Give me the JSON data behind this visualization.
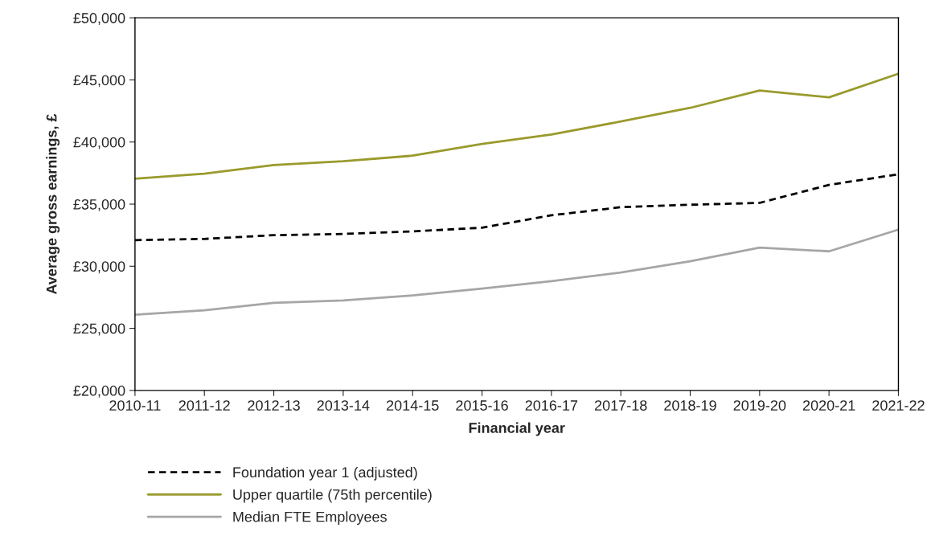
{
  "chart_data": {
    "type": "line",
    "xlabel": "Financial year",
    "ylabel": "Average gross earnings, £",
    "categories": [
      "2010-11",
      "2011-12",
      "2012-13",
      "2013-14",
      "2014-15",
      "2015-16",
      "2016-17",
      "2017-18",
      "2018-19",
      "2019-20",
      "2020-21",
      "2021-22"
    ],
    "series": [
      {
        "name": "Foundation year 1 (adjusted)",
        "color": "#000000",
        "line_style": "dashed",
        "values": [
          32100,
          32200,
          32500,
          32600,
          32800,
          33100,
          34100,
          34750,
          34950,
          35100,
          36550,
          37400
        ]
      },
      {
        "name": "Upper quartile (75th percentile)",
        "color": "#9a9a2c",
        "line_style": "solid",
        "values": [
          37050,
          37450,
          38150,
          38450,
          38900,
          39850,
          40600,
          41650,
          42750,
          44150,
          43600,
          45500
        ]
      },
      {
        "name": "Median FTE Employees",
        "color": "#a6a6a6",
        "line_style": "solid",
        "values": [
          26100,
          26450,
          27050,
          27250,
          27650,
          28200,
          28800,
          29500,
          30400,
          31500,
          31200,
          32950
        ]
      }
    ],
    "ylim": [
      20000,
      50000
    ],
    "yticks": [
      {
        "value": 20000,
        "label": "£20,000"
      },
      {
        "value": 25000,
        "label": "£25,000"
      },
      {
        "value": 30000,
        "label": "£30,000"
      },
      {
        "value": 35000,
        "label": "£35,000"
      },
      {
        "value": 40000,
        "label": "£40,000"
      },
      {
        "value": 45000,
        "label": "£45,000"
      },
      {
        "value": 50000,
        "label": "£50,000"
      }
    ],
    "grid": false,
    "legend": "bottom left",
    "marker": "none"
  }
}
